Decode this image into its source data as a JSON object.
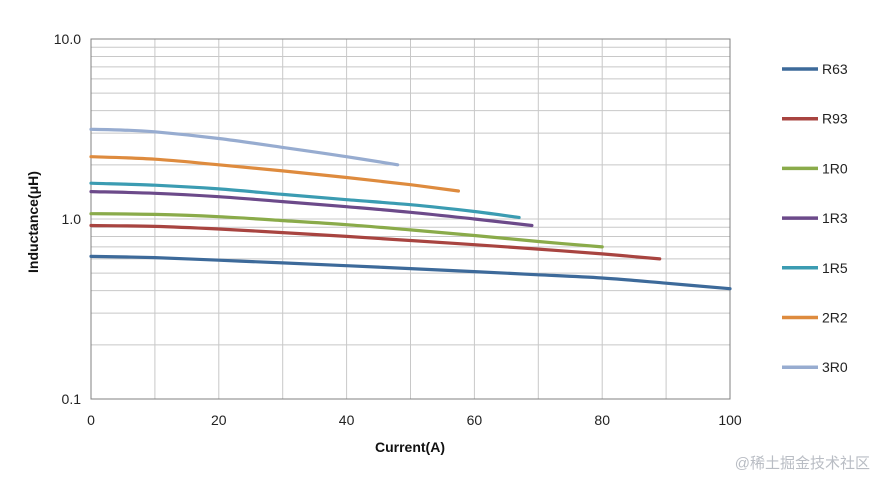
{
  "chart_data": {
    "type": "line",
    "title": "",
    "xlabel": "Current(A)",
    "ylabel": "Inductance(μH)",
    "xlim": [
      0,
      100
    ],
    "ylim": [
      0.1,
      10.0
    ],
    "y_scale": "log",
    "x_ticks": [
      0,
      20,
      40,
      60,
      80,
      100
    ],
    "y_ticks": [
      "10.0",
      "1.0",
      "0.1"
    ],
    "y_tick_values": [
      10,
      1,
      0.1
    ],
    "grid": true,
    "legend_position": "right",
    "series": [
      {
        "name": "R63",
        "color": "#3d6a9a",
        "x": [
          0,
          10,
          20,
          30,
          40,
          50,
          60,
          70,
          80,
          90,
          100
        ],
        "values": [
          0.62,
          0.61,
          0.59,
          0.57,
          0.55,
          0.53,
          0.51,
          0.49,
          0.47,
          0.44,
          0.41
        ]
      },
      {
        "name": "R93",
        "color": "#a84440",
        "x": [
          0,
          10,
          20,
          30,
          40,
          50,
          60,
          70,
          80,
          89
        ],
        "values": [
          0.92,
          0.91,
          0.88,
          0.84,
          0.8,
          0.76,
          0.72,
          0.68,
          0.64,
          0.6
        ]
      },
      {
        "name": "1R0",
        "color": "#8aab4a",
        "x": [
          0,
          10,
          20,
          30,
          40,
          50,
          60,
          70,
          80
        ],
        "values": [
          1.07,
          1.06,
          1.03,
          0.98,
          0.93,
          0.87,
          0.81,
          0.75,
          0.7
        ]
      },
      {
        "name": "1R3",
        "color": "#6c4a8a",
        "x": [
          0,
          10,
          20,
          30,
          40,
          50,
          60,
          69
        ],
        "values": [
          1.42,
          1.39,
          1.33,
          1.25,
          1.17,
          1.09,
          1.0,
          0.92
        ]
      },
      {
        "name": "1R5",
        "color": "#3b9cb2",
        "x": [
          0,
          10,
          20,
          30,
          40,
          50,
          60,
          67
        ],
        "values": [
          1.58,
          1.54,
          1.47,
          1.37,
          1.28,
          1.2,
          1.1,
          1.02
        ]
      },
      {
        "name": "2R2",
        "color": "#de8b3e",
        "x": [
          0,
          10,
          20,
          30,
          40,
          50,
          57.5
        ],
        "values": [
          2.22,
          2.15,
          2.0,
          1.85,
          1.7,
          1.55,
          1.43
        ]
      },
      {
        "name": "3R0",
        "color": "#97acd0",
        "x": [
          0,
          5,
          10,
          20,
          30,
          40,
          48
        ],
        "values": [
          3.15,
          3.12,
          3.05,
          2.8,
          2.5,
          2.22,
          2.0
        ]
      }
    ]
  },
  "watermark": "@稀土掘金技术社区"
}
